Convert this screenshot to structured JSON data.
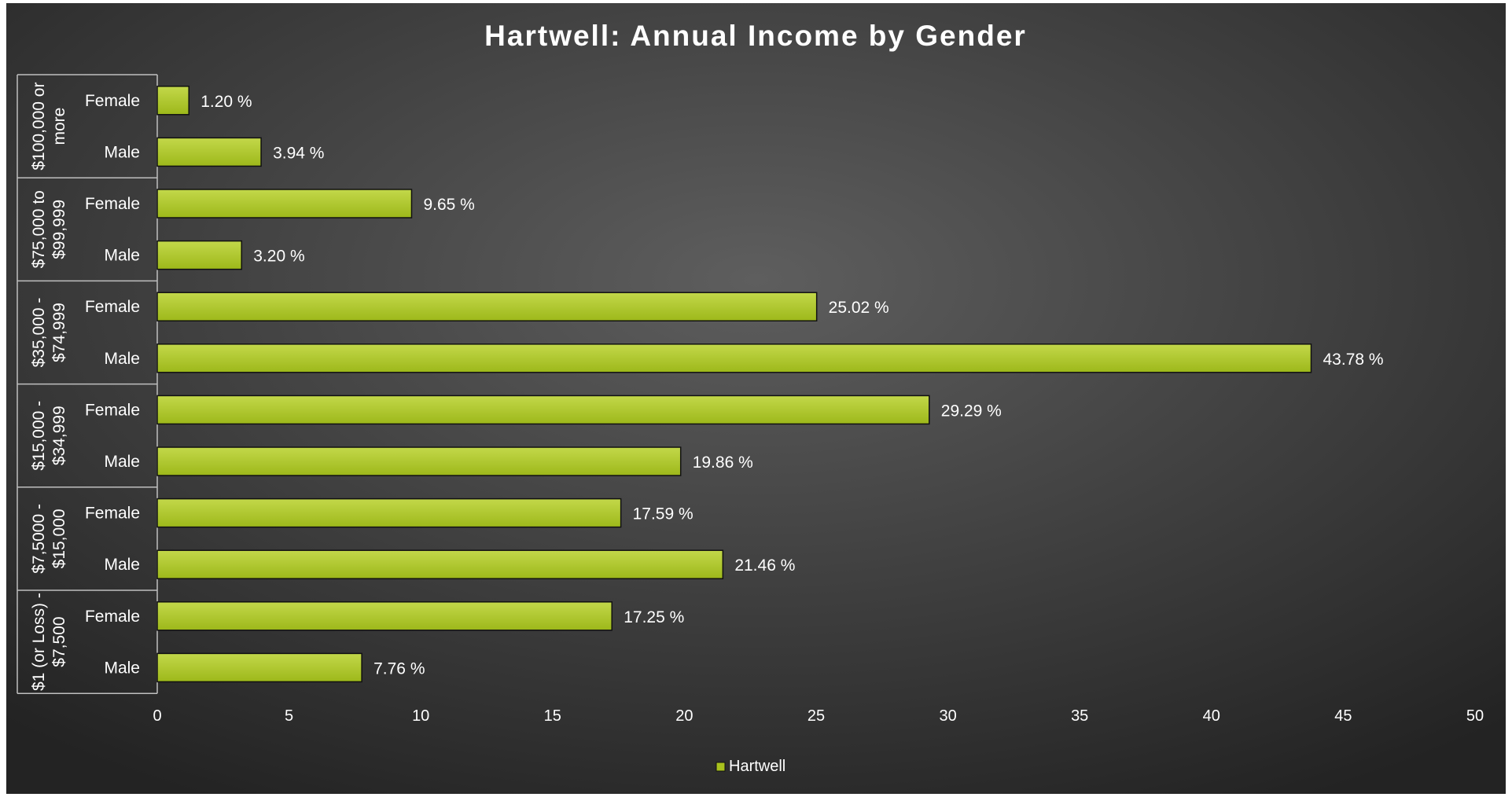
{
  "chart_data": {
    "type": "bar",
    "orientation": "horizontal",
    "title": "Hartwell: Annual Income by Gender",
    "xlabel": "",
    "ylabel": "",
    "xlim": [
      0,
      50
    ],
    "x_ticks": [
      0,
      5,
      10,
      15,
      20,
      25,
      30,
      35,
      40,
      45,
      50
    ],
    "grid": false,
    "legend_position": "bottom",
    "value_suffix": " %",
    "groups": [
      {
        "label": "$100,000 or more",
        "label_lines": [
          "$100,000 or",
          "more"
        ]
      },
      {
        "label": "$75,000 to $99,999",
        "label_lines": [
          "$75,000 to",
          "$99,999"
        ]
      },
      {
        "label": "$35,000 - $74,999",
        "label_lines": [
          "$35,000 -",
          "$74,999"
        ]
      },
      {
        "label": "$15,000 - $34,999",
        "label_lines": [
          "$15,000 -",
          "$34,999"
        ]
      },
      {
        "label": "$7,5000 - $15,000",
        "label_lines": [
          "$7,5000 -",
          "$15,000"
        ]
      },
      {
        "label": "$1 (or Loss) - $7,500",
        "label_lines": [
          "$1 (or Loss) -",
          "$7,500"
        ]
      }
    ],
    "bars": [
      {
        "group": 0,
        "category": "Female",
        "value": 1.2,
        "label": "1.20 %"
      },
      {
        "group": 0,
        "category": "Male",
        "value": 3.94,
        "label": "3.94 %"
      },
      {
        "group": 1,
        "category": "Female",
        "value": 9.65,
        "label": "9.65 %"
      },
      {
        "group": 1,
        "category": "Male",
        "value": 3.2,
        "label": "3.20 %"
      },
      {
        "group": 2,
        "category": "Female",
        "value": 25.02,
        "label": "25.02 %"
      },
      {
        "group": 2,
        "category": "Male",
        "value": 43.78,
        "label": "43.78 %"
      },
      {
        "group": 3,
        "category": "Female",
        "value": 29.29,
        "label": "29.29 %"
      },
      {
        "group": 3,
        "category": "Male",
        "value": 19.86,
        "label": "19.86 %"
      },
      {
        "group": 4,
        "category": "Female",
        "value": 17.59,
        "label": "17.59 %"
      },
      {
        "group": 4,
        "category": "Male",
        "value": 21.46,
        "label": "21.46 %"
      },
      {
        "group": 5,
        "category": "Female",
        "value": 17.25,
        "label": "17.25 %"
      },
      {
        "group": 5,
        "category": "Male",
        "value": 7.76,
        "label": "7.76 %"
      }
    ],
    "series": [
      {
        "name": "Hartwell",
        "color": "#a9c21e"
      }
    ],
    "colors": {
      "background_center": "#5e5e5e",
      "background_edge": "#232323",
      "text": "#ffffff",
      "axis_line": "#bfbfbf",
      "bar_fill_light": "#c3d84a",
      "bar_fill_dark": "#9db81a",
      "bar_stroke": "#111111"
    }
  }
}
